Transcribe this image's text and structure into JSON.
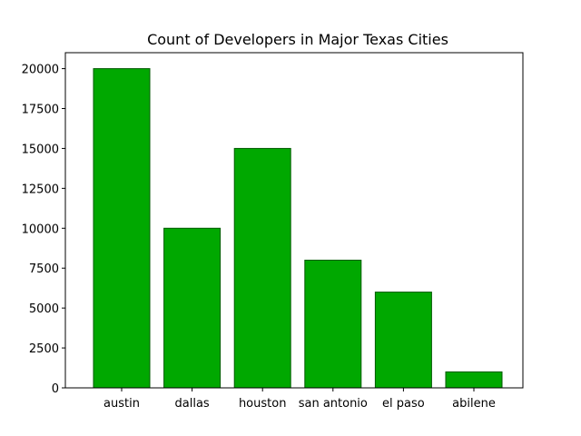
{
  "chart_data": {
    "type": "bar",
    "title": "Count of Developers in Major Texas Cities",
    "xlabel": "",
    "ylabel": "",
    "categories": [
      "austin",
      "dallas",
      "houston",
      "san antonio",
      "el paso",
      "abilene"
    ],
    "values": [
      20000,
      10000,
      15000,
      8000,
      6000,
      1000
    ],
    "ylim": [
      0,
      21000
    ],
    "yticks": [
      0,
      2500,
      5000,
      7500,
      10000,
      12500,
      15000,
      17500,
      20000
    ],
    "grid": false,
    "legend": "none",
    "colors": {
      "bar_fill": "#00a800",
      "bar_edge": "#005a00",
      "axis": "#000000"
    }
  }
}
